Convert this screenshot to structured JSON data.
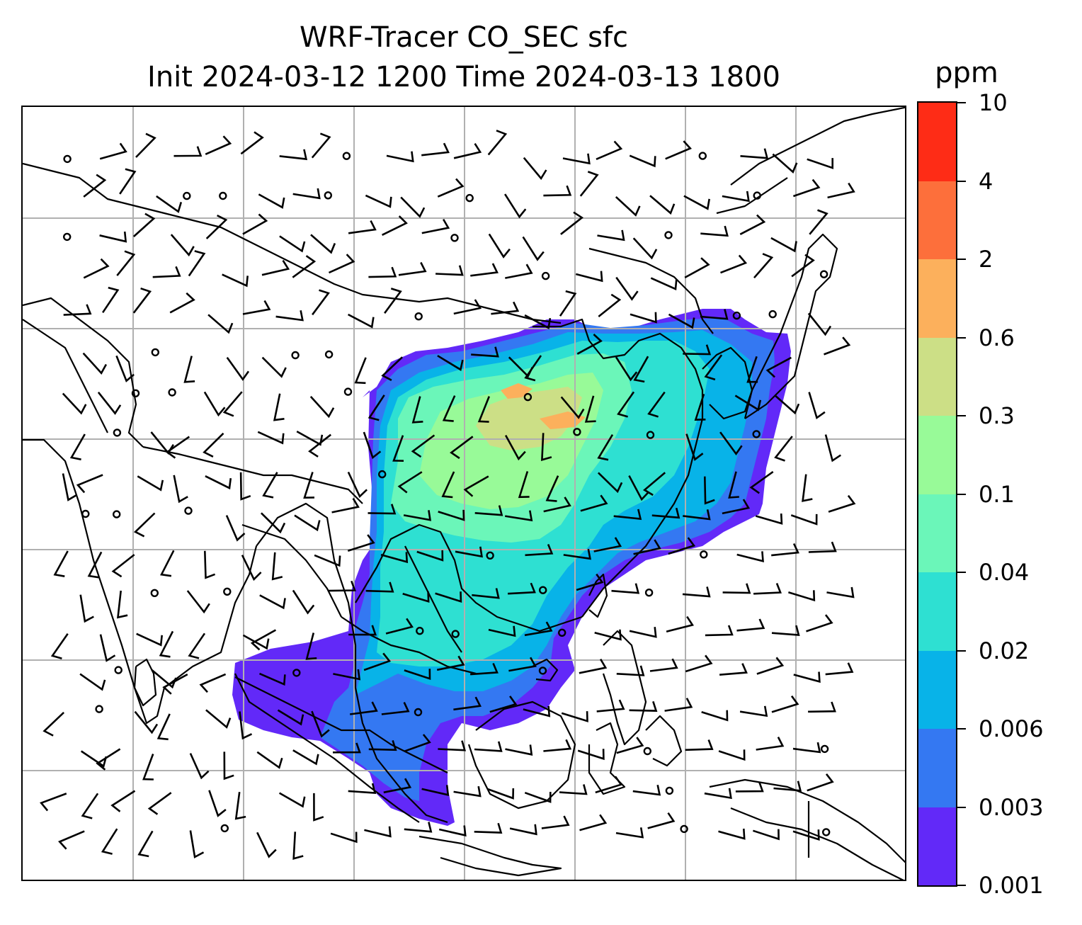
{
  "title": {
    "line1": "WRF-Tracer CO_SEC sfc",
    "line2": "Init 2024-03-12 1200 Time 2024-03-13 1800"
  },
  "colorbar": {
    "unit": "ppm",
    "ticks": [
      "0.001",
      "0.003",
      "0.006",
      "0.02",
      "0.04",
      "0.1",
      "0.3",
      "0.6",
      "2",
      "4",
      "10"
    ],
    "colors": [
      "#6229f8",
      "#3478f2",
      "#08b3e8",
      "#2ee0d2",
      "#6bf6b9",
      "#98fa98",
      "#ccdf86",
      "#fcb05c",
      "#fd6f3b",
      "#fe2c16"
    ]
  },
  "map": {
    "gridlines": true,
    "gridline_color": "#b0b0b0",
    "coastline_color": "#000000",
    "features": [
      "coastlines",
      "country-borders",
      "wind-barbs",
      "calm-wind-circles",
      "tracer-concentration-fill"
    ]
  }
}
